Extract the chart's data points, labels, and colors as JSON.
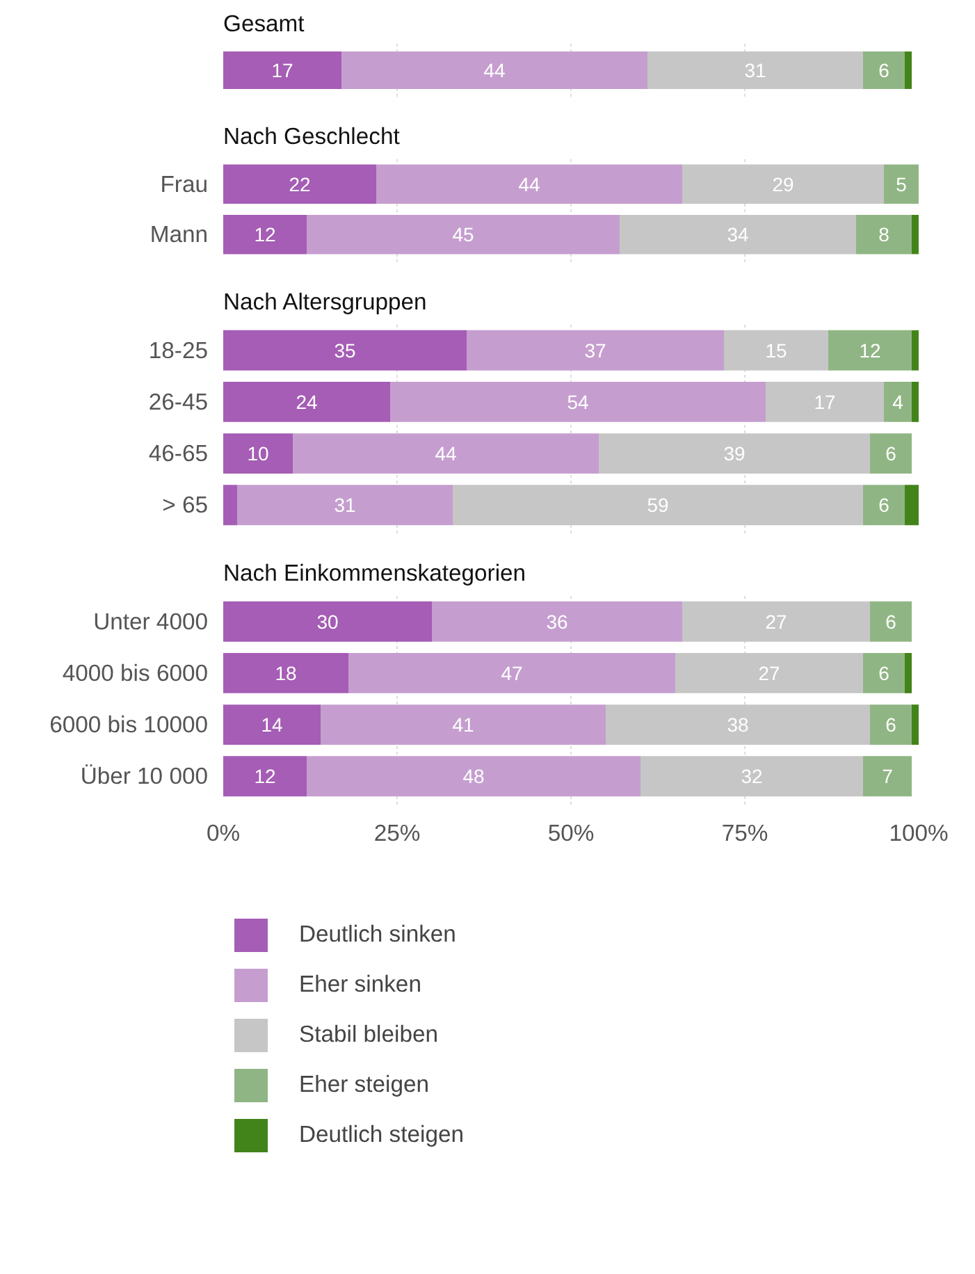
{
  "chart_data": [
    {
      "type": "bar",
      "orientation": "horizontal",
      "stacked": true,
      "title": "Gesamt",
      "categories": [
        null
      ],
      "xlim": [
        0,
        100
      ],
      "grid": "x",
      "tick_labels": "y",
      "series": [
        {
          "color": "#a55db5",
          "values": [
            17
          ],
          "value_labels": [
            "17"
          ]
        },
        {
          "color": "#c59ecf",
          "values": [
            44
          ],
          "value_labels": [
            "44"
          ]
        },
        {
          "color": "#c6c6c6",
          "values": [
            31
          ],
          "value_labels": [
            "31"
          ]
        },
        {
          "color": "#90b584",
          "values": [
            6
          ],
          "value_labels": [
            "6"
          ]
        },
        {
          "color": "#42841a",
          "values": [
            1
          ],
          "value_labels": [
            null
          ]
        }
      ]
    },
    {
      "type": "bar",
      "orientation": "horizontal",
      "stacked": true,
      "title": "Nach Geschlecht",
      "categories": [
        "Frau",
        "Mann"
      ],
      "xlim": [
        0,
        100
      ],
      "grid": "x",
      "tick_labels": "y",
      "series": [
        {
          "color": "#a55db5",
          "values": [
            22,
            12
          ],
          "value_labels": [
            "22",
            "12"
          ]
        },
        {
          "color": "#c59ecf",
          "values": [
            44,
            45
          ],
          "value_labels": [
            "44",
            "45"
          ]
        },
        {
          "color": "#c6c6c6",
          "values": [
            29,
            34
          ],
          "value_labels": [
            "29",
            "34"
          ]
        },
        {
          "color": "#90b584",
          "values": [
            5,
            8
          ],
          "value_labels": [
            "5",
            "8"
          ]
        },
        {
          "color": "#42841a",
          "values": [
            null,
            1
          ],
          "value_labels": [
            null,
            null
          ]
        }
      ]
    },
    {
      "type": "bar",
      "orientation": "horizontal",
      "stacked": true,
      "title": "Nach Altersgruppen",
      "categories": [
        "18-25",
        "26-45",
        "46-65",
        "> 65"
      ],
      "xlim": [
        0,
        100
      ],
      "grid": "x",
      "tick_labels": "y",
      "series": [
        {
          "color": "#a55db5",
          "values": [
            35,
            24,
            10,
            2
          ],
          "value_labels": [
            "35",
            "24",
            "10",
            null
          ]
        },
        {
          "color": "#c59ecf",
          "values": [
            37,
            54,
            44,
            31
          ],
          "value_labels": [
            "37",
            "54",
            "44",
            "31"
          ]
        },
        {
          "color": "#c6c6c6",
          "values": [
            15,
            17,
            39,
            59
          ],
          "value_labels": [
            "15",
            "17",
            "39",
            "59"
          ]
        },
        {
          "color": "#90b584",
          "values": [
            12,
            4,
            6,
            6
          ],
          "value_labels": [
            "12",
            "4",
            "6",
            "6"
          ]
        },
        {
          "color": "#42841a",
          "values": [
            1,
            1,
            null,
            2
          ],
          "value_labels": [
            null,
            null,
            null,
            null
          ]
        }
      ]
    },
    {
      "type": "bar",
      "orientation": "horizontal",
      "stacked": true,
      "title": "Nach Einkommenskategorien",
      "categories": [
        "Unter 4000",
        "4000 bis 6000",
        "6000 bis 10000",
        "Über 10 000"
      ],
      "xlim": [
        0,
        100
      ],
      "xticks": [
        {
          "value": 0,
          "label": "0%"
        },
        {
          "value": 25,
          "label": "25%"
        },
        {
          "value": 50,
          "label": "50%"
        },
        {
          "value": 75,
          "label": "75%"
        },
        {
          "value": 100,
          "label": "100%"
        }
      ],
      "grid": "x",
      "legend": "bottom",
      "series": [
        {
          "name": "Deutlich sinken",
          "color": "#a55db5",
          "values": [
            30,
            18,
            14,
            12
          ],
          "value_labels": [
            "30",
            "18",
            "14",
            "12"
          ]
        },
        {
          "name": "Eher sinken",
          "color": "#c59ecf",
          "values": [
            36,
            47,
            41,
            48
          ],
          "value_labels": [
            "36",
            "47",
            "41",
            "48"
          ]
        },
        {
          "name": "Stabil bleiben",
          "color": "#c6c6c6",
          "values": [
            27,
            27,
            38,
            32
          ],
          "value_labels": [
            "27",
            "27",
            "38",
            "32"
          ]
        },
        {
          "name": "Eher steigen",
          "color": "#90b584",
          "values": [
            6,
            6,
            6,
            7
          ],
          "value_labels": [
            "6",
            "6",
            "6",
            "7"
          ]
        },
        {
          "name": "Deutlich steigen",
          "color": "#42841a",
          "values": [
            null,
            1,
            1,
            null
          ],
          "value_labels": [
            null,
            null,
            null,
            null
          ]
        }
      ]
    }
  ]
}
